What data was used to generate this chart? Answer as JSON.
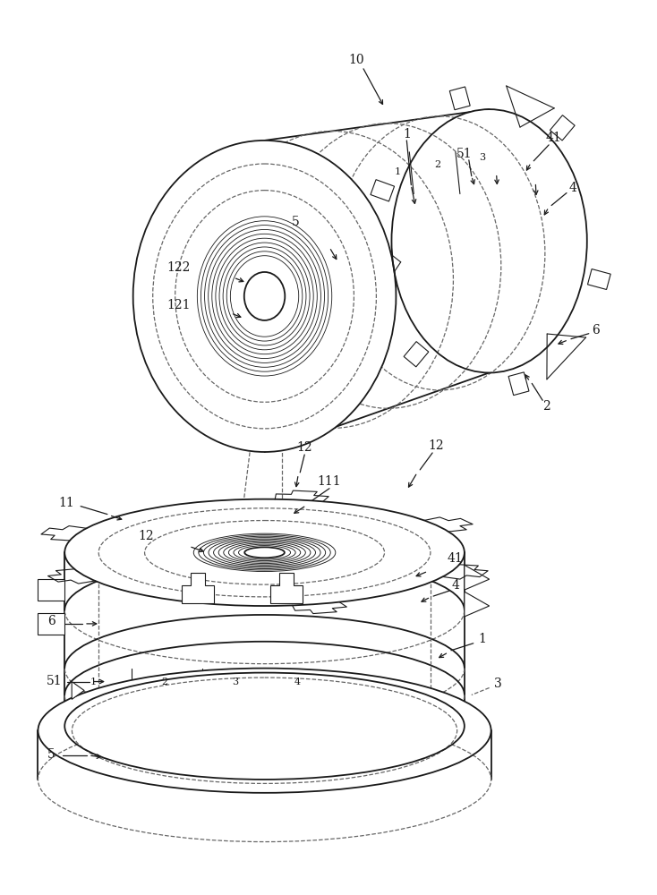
{
  "bg_color": "#ffffff",
  "line_color": "#1a1a1a",
  "dashed_color": "#666666",
  "label_color": "#1a1a1a",
  "fig_width": 7.34,
  "fig_height": 10.0
}
